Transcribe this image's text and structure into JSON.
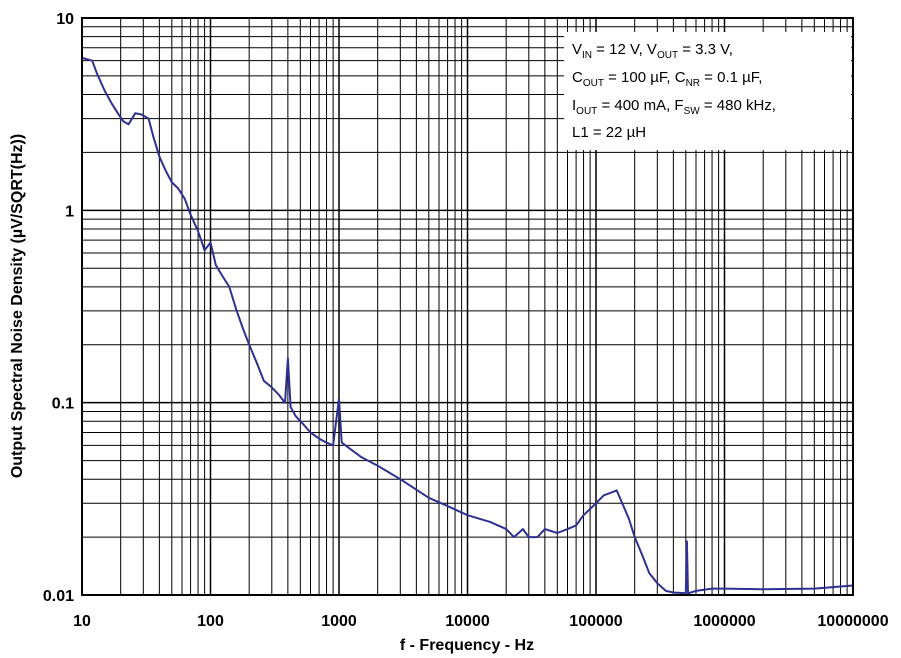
{
  "chart_data": {
    "type": "line",
    "xlabel": "f - Frequency - Hz",
    "ylabel": "Output Spectral Noise Density (µV/SQRT(Hz))",
    "x_scale": "log",
    "y_scale": "log",
    "xlim": [
      10,
      10000000
    ],
    "ylim": [
      0.01,
      10
    ],
    "grid": true,
    "line_color": "#2e3192",
    "x_tick_labels": [
      "10",
      "100",
      "1000",
      "10000",
      "100000",
      "1000000",
      "10000000"
    ],
    "y_tick_labels": [
      "0.01",
      "0.1",
      "1",
      "10"
    ],
    "annotation": {
      "line1": "V_IN = 12 V, V_OUT = 3.3 V,",
      "line2": "C_OUT = 100 µF, C_NR = 0.1 µF,",
      "line3": "I_OUT = 400 mA, F_SW = 480 kHz,",
      "line4": "L1 = 22 µH",
      "v": "V",
      "in_sub": "IN",
      "v_mid": " = 12 V, V",
      "out_sub": "OUT",
      "v_end": " = 3.3 V,",
      "c": "C",
      "c_out_sub": "OUT",
      "c_mid": " = 100 µF, C",
      "nr_sub": "NR",
      "c_end": " = 0.1 µF,",
      "i": "I",
      "i_out_sub": "OUT",
      "i_mid": " = 400 mA, F",
      "sw_sub": "SW",
      "i_end": " = 480 kHz,",
      "l1": "L1 = 22 µH"
    },
    "series": [
      {
        "x": [
          10,
          12,
          13,
          15,
          17,
          19,
          21,
          23,
          26,
          29,
          33,
          36,
          40,
          45,
          50,
          56,
          63,
          70,
          80,
          90,
          100,
          110,
          125,
          140,
          160,
          180,
          200,
          230,
          260,
          300,
          340,
          380,
          400,
          420,
          460,
          520,
          600,
          700,
          800,
          900,
          1000,
          1050,
          1200,
          1500,
          2000,
          3000,
          5000,
          7000,
          10000,
          15000,
          20000,
          23000,
          27000,
          30000,
          35000,
          40000,
          50000,
          60000,
          70000,
          80000,
          90000,
          100000,
          115000,
          130000,
          145000,
          160000,
          180000,
          200000,
          230000,
          260000,
          300000,
          350000,
          400000,
          500000,
          510000,
          520000,
          600000,
          800000,
          1000000,
          2000000,
          5000000,
          10000000
        ],
        "y": [
          6.2,
          6.0,
          5.2,
          4.2,
          3.6,
          3.2,
          2.9,
          2.8,
          3.2,
          3.15,
          3.0,
          2.4,
          1.9,
          1.6,
          1.4,
          1.3,
          1.15,
          0.95,
          0.78,
          0.62,
          0.68,
          0.52,
          0.45,
          0.4,
          0.3,
          0.24,
          0.2,
          0.16,
          0.13,
          0.12,
          0.11,
          0.1,
          0.17,
          0.095,
          0.085,
          0.078,
          0.07,
          0.065,
          0.062,
          0.06,
          0.105,
          0.062,
          0.058,
          0.052,
          0.047,
          0.04,
          0.032,
          0.029,
          0.026,
          0.024,
          0.022,
          0.02,
          0.022,
          0.02,
          0.02,
          0.022,
          0.021,
          0.022,
          0.023,
          0.026,
          0.028,
          0.03,
          0.033,
          0.034,
          0.035,
          0.03,
          0.025,
          0.02,
          0.016,
          0.013,
          0.0115,
          0.0105,
          0.0103,
          0.0102,
          0.019,
          0.0102,
          0.0105,
          0.0108,
          0.0108,
          0.0107,
          0.0108,
          0.0112
        ]
      }
    ]
  }
}
